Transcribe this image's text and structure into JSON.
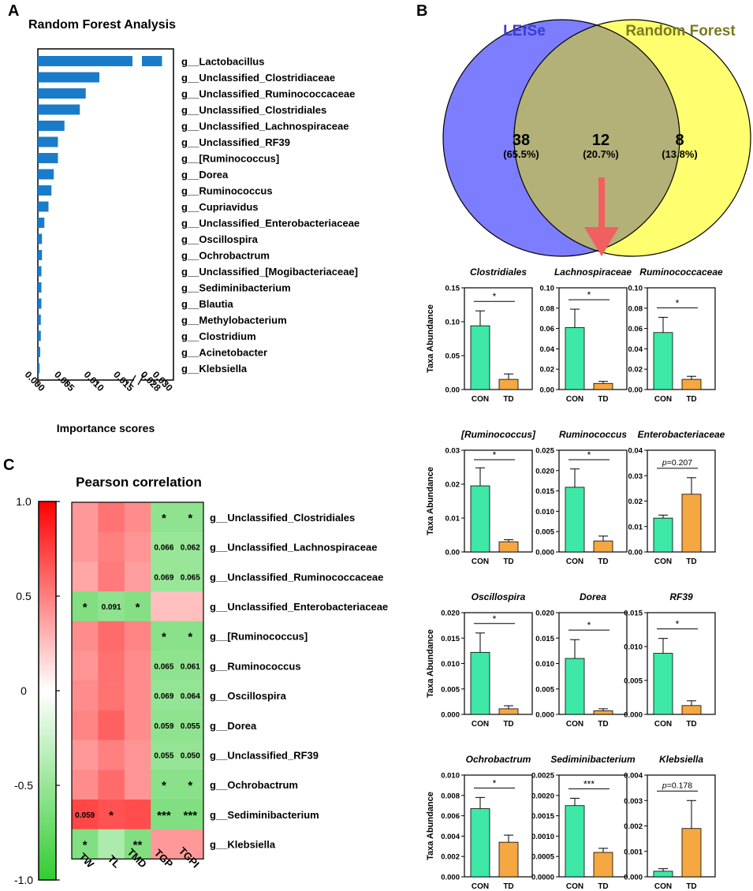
{
  "panel_labels": {
    "a": "A",
    "b": "B",
    "c": "C"
  },
  "chart_data": [
    {
      "type": "bar",
      "orientation": "horizontal",
      "title": "Random Forest Analysis",
      "xlabel": "Importance scores",
      "axis_break": {
        "from": 0.016,
        "to": 0.026
      },
      "xticks": [
        "0.000",
        "0.005",
        "0.010",
        "0.015",
        "0.028",
        "0.030"
      ],
      "categories": [
        "g__Lactobacillus",
        "g__Unclassified_Clostridiaceae",
        "g__Unclassified_Ruminococcaceae",
        "g__Unclassified_Clostridiales",
        "g__Unclassified_Lachnospiraceae",
        "g__Unclassified_RF39",
        "g__[Ruminococcus]",
        "g__Dorea",
        "g__Ruminococcus",
        "g__Cupriavidus",
        "g__Unclassified_Enterobacteriaceae",
        "g__Oscillospira",
        "g__Ochrobactrum",
        "g__Unclassified_[Mogibacteriaceae]",
        "g__Sediminibacterium",
        "g__Blautia",
        "g__Methylobacterium",
        "g__Clostridium",
        "g__Acinetobacter",
        "g__Klebsiella"
      ],
      "values": [
        0.0294,
        0.0104,
        0.0081,
        0.0071,
        0.0045,
        0.0034,
        0.0034,
        0.0027,
        0.0023,
        0.0018,
        0.0011,
        0.0007,
        0.0007,
        0.0006,
        0.0006,
        0.0006,
        0.0005,
        0.0005,
        0.0004,
        0.0003
      ]
    },
    {
      "type": "venn",
      "sets": [
        {
          "name": "LEfSe",
          "color": "#7d7dff",
          "label_color": "#3a3ad8",
          "count": "38",
          "pct": "(65.5%)"
        },
        {
          "name": "Random Forest",
          "color": "#ffff70",
          "label_color": "#7a7a1e",
          "count": "8",
          "pct": "(13.8%)"
        }
      ],
      "overlap": {
        "count": "12",
        "pct": "(20.7%)",
        "color": "#b3b178"
      }
    },
    {
      "type": "bar",
      "groups": [
        "CON",
        "TD"
      ],
      "ylabel": "Taxa Abundance",
      "colors": {
        "CON": "#3ee8a6",
        "TD": "#f5a742"
      },
      "panels": [
        {
          "title": "Clostridiales",
          "values": [
            0.094,
            0.015
          ],
          "errors": [
            0.022,
            0.008
          ],
          "ylim": [
            0,
            0.15
          ],
          "yticks": [
            "0.00",
            "0.05",
            "0.10",
            "0.15"
          ],
          "sig": "*",
          "sig_type": "star"
        },
        {
          "title": "Lachnospiraceae",
          "values": [
            0.061,
            0.006
          ],
          "errors": [
            0.018,
            0.002
          ],
          "ylim": [
            0,
            0.1
          ],
          "yticks": [
            "0.00",
            "0.02",
            "0.04",
            "0.06",
            "0.08",
            "0.10"
          ],
          "sig": "*",
          "sig_type": "star"
        },
        {
          "title": "Ruminococcaceae",
          "values": [
            0.056,
            0.01
          ],
          "errors": [
            0.015,
            0.003
          ],
          "ylim": [
            0,
            0.1
          ],
          "yticks": [
            "0.00",
            "0.02",
            "0.04",
            "0.06",
            "0.08",
            "0.10"
          ],
          "sig": "*",
          "sig_type": "star"
        },
        {
          "title": "[Ruminococcus]",
          "values": [
            0.0195,
            0.003
          ],
          "errors": [
            0.0053,
            0.0006
          ],
          "ylim": [
            0,
            0.03
          ],
          "yticks": [
            "0.00",
            "0.01",
            "0.02",
            "0.03"
          ],
          "sig": "*",
          "sig_type": "star"
        },
        {
          "title": "Ruminococcus",
          "values": [
            0.0159,
            0.0027
          ],
          "errors": [
            0.0045,
            0.0012
          ],
          "ylim": [
            0,
            0.025
          ],
          "yticks": [
            "0.000",
            "0.005",
            "0.010",
            "0.015",
            "0.020",
            "0.025"
          ],
          "sig": "*",
          "sig_type": "star"
        },
        {
          "title": "Enterobacteriaceae",
          "values": [
            0.0133,
            0.0227
          ],
          "errors": [
            0.0012,
            0.0065
          ],
          "ylim": [
            0,
            0.04
          ],
          "yticks": [
            "0.00",
            "0.01",
            "0.02",
            "0.03",
            "0.04"
          ],
          "sig_p": "p",
          "sig": "=0.207",
          "sig_type": "p"
        },
        {
          "title": "Oscillospira",
          "values": [
            0.0122,
            0.0011
          ],
          "errors": [
            0.0038,
            0.0006
          ],
          "ylim": [
            0,
            0.02
          ],
          "yticks": [
            "0.000",
            "0.005",
            "0.010",
            "0.015",
            "0.020"
          ],
          "sig": "*",
          "sig_type": "star"
        },
        {
          "title": "Dorea",
          "values": [
            0.011,
            0.0007
          ],
          "errors": [
            0.0037,
            0.0004
          ],
          "ylim": [
            0,
            0.02
          ],
          "yticks": [
            "0.000",
            "0.005",
            "0.010",
            "0.015",
            "0.020"
          ],
          "sig": "*",
          "sig_type": "star"
        },
        {
          "title": "RF39",
          "values": [
            0.009,
            0.0013
          ],
          "errors": [
            0.0022,
            0.0007
          ],
          "ylim": [
            0,
            0.015
          ],
          "yticks": [
            "0.000",
            "0.005",
            "0.010",
            "0.015"
          ],
          "sig": "*",
          "sig_type": "star"
        },
        {
          "title": "Ochrobactrum",
          "values": [
            0.0067,
            0.0034
          ],
          "errors": [
            0.0011,
            0.0007
          ],
          "ylim": [
            0,
            0.01
          ],
          "yticks": [
            "0.000",
            "0.002",
            "0.004",
            "0.006",
            "0.008",
            "0.010"
          ],
          "sig": "*",
          "sig_type": "star"
        },
        {
          "title": "Sediminibacterium",
          "values": [
            0.00175,
            0.0006
          ],
          "errors": [
            0.00018,
            0.0001
          ],
          "ylim": [
            0,
            0.0025
          ],
          "yticks": [
            "0.0000",
            "0.0005",
            "0.0010",
            "0.0015",
            "0.0020",
            "0.0025"
          ],
          "sig": "***",
          "sig_type": "star"
        },
        {
          "title": "Klebsiella",
          "values": [
            0.00022,
            0.0019
          ],
          "errors": [
            0.0001,
            0.0011
          ],
          "ylim": [
            0,
            0.004
          ],
          "yticks": [
            "0.000",
            "0.001",
            "0.002",
            "0.003",
            "0.004"
          ],
          "sig_p": "p",
          "sig": "=0.178",
          "sig_type": "p"
        }
      ]
    },
    {
      "type": "heatmap",
      "title": "Pearson correlation",
      "columns": [
        "TW",
        "TL",
        "TMD",
        "TGP",
        "TGPI"
      ],
      "rows": [
        "g__Unclassified_Clostridiales",
        "g__Unclassified_Lachnospiraceae",
        "g__Unclassified_Ruminococcaceae",
        "g__Unclassified_Enterobacteriaceae",
        "g__[Ruminococcus]",
        "g__Ruminococcus",
        "g__Oscillospira",
        "g__Dorea",
        "g__Unclassified_RF39",
        "g__Ochrobactrum",
        "g__Sediminibacterium",
        "g__Klebsiella"
      ],
      "values": [
        [
          0.4,
          0.55,
          0.45,
          -0.55,
          -0.55
        ],
        [
          0.4,
          0.5,
          0.42,
          -0.5,
          -0.5
        ],
        [
          0.35,
          0.52,
          0.38,
          -0.5,
          -0.5
        ],
        [
          -0.62,
          -0.55,
          -0.6,
          0.25,
          0.25
        ],
        [
          0.45,
          0.58,
          0.48,
          -0.58,
          -0.58
        ],
        [
          0.42,
          0.56,
          0.45,
          -0.55,
          -0.55
        ],
        [
          0.45,
          0.55,
          0.45,
          -0.52,
          -0.52
        ],
        [
          0.48,
          0.62,
          0.45,
          -0.55,
          -0.55
        ],
        [
          0.4,
          0.5,
          0.42,
          -0.52,
          -0.52
        ],
        [
          0.45,
          0.58,
          0.42,
          -0.58,
          -0.58
        ],
        [
          0.72,
          0.68,
          0.7,
          -0.62,
          -0.62
        ],
        [
          -0.62,
          -0.4,
          -0.62,
          0.4,
          0.4
        ]
      ],
      "annotations": [
        [
          "",
          "",
          "",
          "*",
          "*"
        ],
        [
          "",
          "",
          "",
          "0.066",
          "0.062"
        ],
        [
          "",
          "",
          "",
          "0.069",
          "0.065"
        ],
        [
          "*",
          "0.091",
          "*",
          "",
          ""
        ],
        [
          "",
          "",
          "",
          "*",
          "*"
        ],
        [
          "",
          "",
          "",
          "0.065",
          "0.061"
        ],
        [
          "",
          "",
          "",
          "0.069",
          "0.064"
        ],
        [
          "",
          "",
          "",
          "0.059",
          "0.055"
        ],
        [
          "",
          "",
          "",
          "0.055",
          "0.050"
        ],
        [
          "",
          "",
          "",
          "*",
          "*"
        ],
        [
          "0.059",
          "*",
          "",
          "***",
          "***"
        ],
        [
          "*",
          "",
          "**",
          "",
          ""
        ]
      ],
      "colorbar": {
        "ticks": [
          "1.0",
          "0.5",
          "0",
          "-0.5",
          "-1.0"
        ],
        "range": [
          -1,
          1
        ],
        "high": "#ff0000",
        "mid": "#ffffff",
        "low": "#33cc33"
      }
    }
  ]
}
